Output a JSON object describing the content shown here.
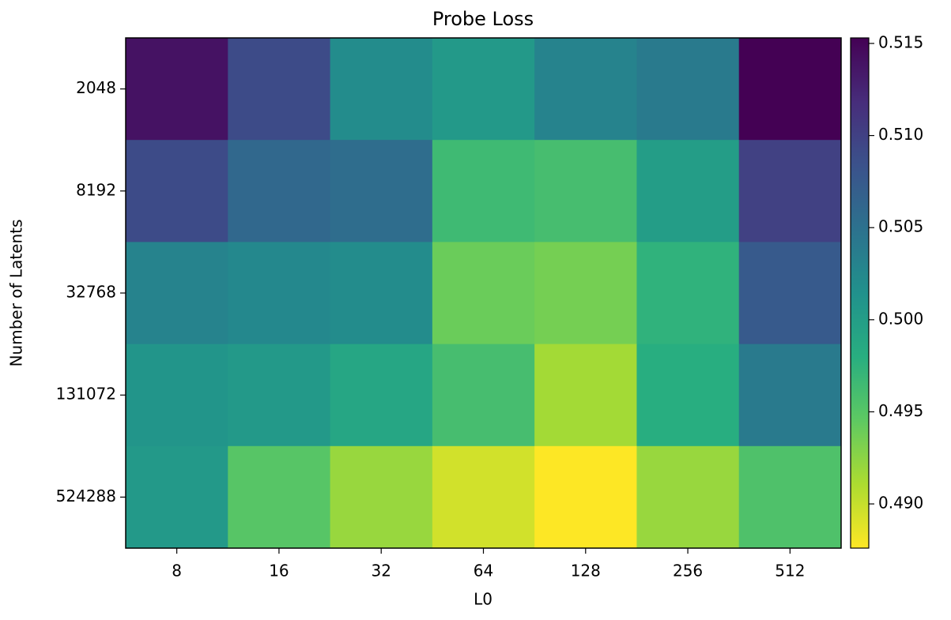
{
  "chart_data": {
    "type": "heatmap",
    "title": "Probe Loss",
    "x_label": "L0",
    "y_label": "Number of Latents",
    "x": [
      8,
      16,
      32,
      64,
      128,
      256,
      512
    ],
    "y": [
      2048,
      8192,
      32768,
      131072,
      524288
    ],
    "values": [
      [
        0.514,
        0.509,
        0.502,
        0.5005,
        0.503,
        0.504,
        0.5153
      ],
      [
        0.509,
        0.506,
        0.5055,
        0.4965,
        0.496,
        0.5,
        0.51
      ],
      [
        0.503,
        0.5025,
        0.502,
        0.494,
        0.4935,
        0.4975,
        0.5075
      ],
      [
        0.501,
        0.5005,
        0.499,
        0.496,
        0.4915,
        0.498,
        0.504
      ],
      [
        0.5005,
        0.495,
        0.492,
        0.4895,
        0.4876,
        0.492,
        0.4955
      ]
    ],
    "colormap": "viridis_r",
    "zlim": [
      0.4876,
      0.5153
    ],
    "zticks": [
      {
        "value": 0.49,
        "label": "0.490"
      },
      0.495,
      {
        "value": 0.5,
        "label": "0.500"
      },
      0.505,
      {
        "value": 0.51,
        "label": "0.510"
      },
      0.515
    ]
  }
}
